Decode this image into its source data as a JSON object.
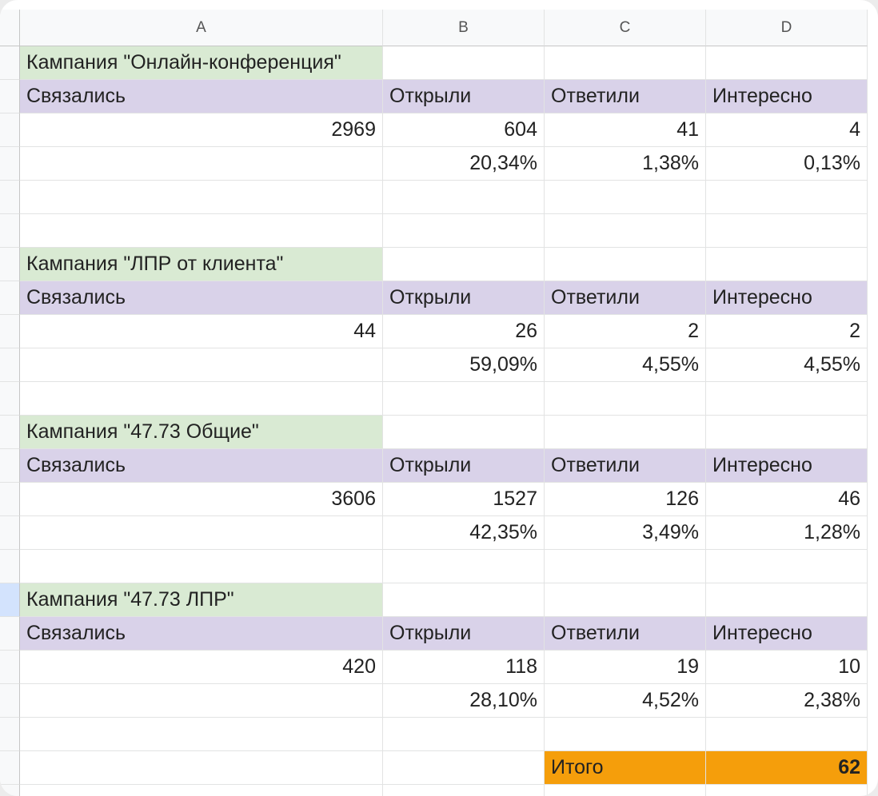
{
  "columns": [
    "A",
    "B",
    "C",
    "D"
  ],
  "campaigns": [
    {
      "title": "Кампания \"Онлайн-конференция\"",
      "headers": [
        "Связались",
        "Открыли",
        "Ответили",
        "Интересно"
      ],
      "counts": [
        "2969",
        "604",
        "41",
        "4"
      ],
      "percents": [
        "20,34%",
        "1,38%",
        "0,13%"
      ]
    },
    {
      "title": "Кампания \"ЛПР от клиента\"",
      "headers": [
        "Связались",
        "Открыли",
        "Ответили",
        "Интересно"
      ],
      "counts": [
        "44",
        "26",
        "2",
        "2"
      ],
      "percents": [
        "59,09%",
        "4,55%",
        "4,55%"
      ]
    },
    {
      "title": "Кампания \"47.73 Общие\"",
      "headers": [
        "Связались",
        "Открыли",
        "Ответили",
        "Интересно"
      ],
      "counts": [
        "3606",
        "1527",
        "126",
        "46"
      ],
      "percents": [
        "42,35%",
        "3,49%",
        "1,28%"
      ]
    },
    {
      "title": "Кампания \"47.73 ЛПР\"",
      "headers": [
        "Связались",
        "Открыли",
        "Ответили",
        "Интересно"
      ],
      "counts": [
        "420",
        "118",
        "19",
        "10"
      ],
      "percents": [
        "28,10%",
        "4,52%",
        "2,38%"
      ]
    }
  ],
  "total": {
    "label": "Итого",
    "value": "62"
  },
  "colors": {
    "title_fill": "#d9ead3",
    "header_fill": "#d9d2e9",
    "total_fill": "#f59e0b",
    "active_row": "#d3e3fd"
  }
}
